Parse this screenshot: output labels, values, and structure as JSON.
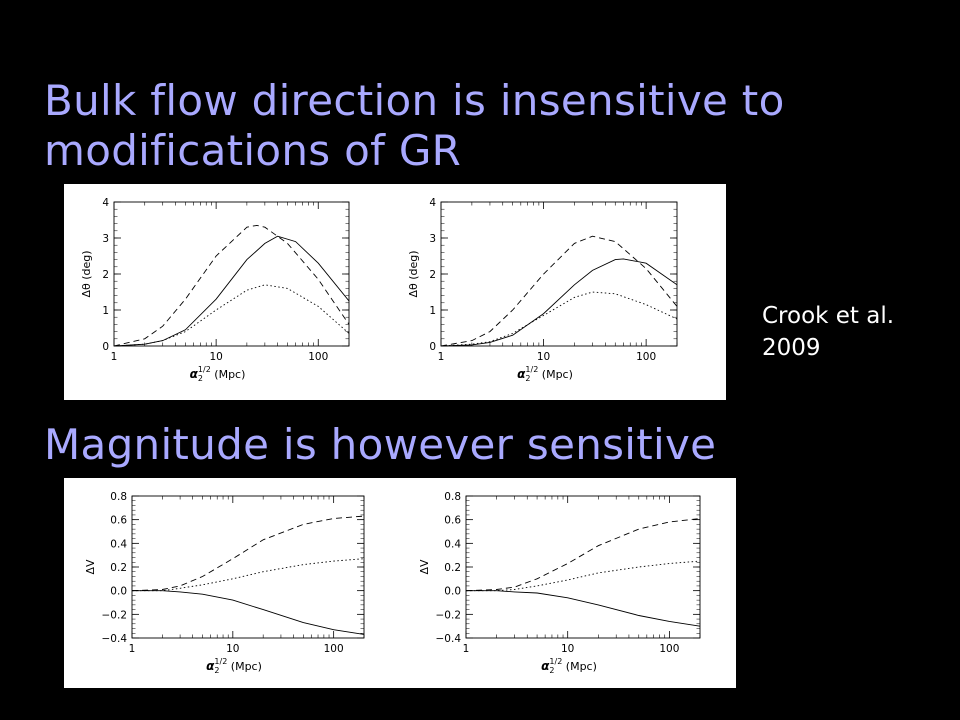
{
  "slide": {
    "title_top_line1": "Bulk flow direction is insensitive to",
    "title_top_line2": "modifications of GR",
    "title_bottom": "Magnitude is however sensitive",
    "citation_line1": "Crook et al.",
    "citation_line2": "2009",
    "title_color": "#a9a9ff",
    "background_color": "#000000"
  },
  "chart_data": [
    {
      "type": "line",
      "xscale": "log",
      "xlim": [
        1,
        200
      ],
      "ylim": [
        0,
        4
      ],
      "xticks": [
        1,
        10,
        100
      ],
      "yticks": [
        0,
        1,
        2,
        3,
        4
      ],
      "xtick_labels": [
        "1",
        "10",
        "100"
      ],
      "ytick_labels": [
        "0",
        "1",
        "2",
        "3",
        "4"
      ],
      "xlabel_main": "α",
      "xlabel_sup": "1/2",
      "xlabel_sub": "2",
      "xlabel_unit": "(Mpc)",
      "ylabel": "Δθ (deg)",
      "series": [
        {
          "style": "solid",
          "x": [
            1,
            2,
            3,
            5,
            10,
            20,
            30,
            40,
            60,
            100,
            200
          ],
          "y": [
            0.0,
            0.05,
            0.15,
            0.45,
            1.3,
            2.4,
            2.85,
            3.05,
            2.9,
            2.3,
            1.25
          ]
        },
        {
          "style": "dashed",
          "x": [
            1,
            2,
            3,
            5,
            10,
            20,
            25,
            30,
            50,
            100,
            200
          ],
          "y": [
            0.0,
            0.2,
            0.55,
            1.3,
            2.5,
            3.3,
            3.35,
            3.3,
            2.85,
            1.85,
            0.6
          ]
        },
        {
          "style": "dotted",
          "x": [
            1,
            2,
            3,
            5,
            10,
            20,
            30,
            50,
            100,
            200
          ],
          "y": [
            0.0,
            0.05,
            0.15,
            0.4,
            1.0,
            1.55,
            1.7,
            1.6,
            1.1,
            0.35
          ]
        }
      ]
    },
    {
      "type": "line",
      "xscale": "log",
      "xlim": [
        1,
        200
      ],
      "ylim": [
        0,
        4
      ],
      "xticks": [
        1,
        10,
        100
      ],
      "yticks": [
        0,
        1,
        2,
        3,
        4
      ],
      "xtick_labels": [
        "1",
        "10",
        "100"
      ],
      "ytick_labels": [
        "0",
        "1",
        "2",
        "3",
        "4"
      ],
      "xlabel_main": "α",
      "xlabel_sup": "1/2",
      "xlabel_sub": "2",
      "xlabel_unit": "(Mpc)",
      "ylabel": "Δθ (deg)",
      "series": [
        {
          "style": "solid",
          "x": [
            1,
            2,
            3,
            5,
            10,
            20,
            30,
            50,
            60,
            100,
            200
          ],
          "y": [
            0.0,
            0.03,
            0.1,
            0.3,
            0.9,
            1.7,
            2.1,
            2.4,
            2.42,
            2.3,
            1.7
          ]
        },
        {
          "style": "dashed",
          "x": [
            1,
            2,
            3,
            5,
            10,
            20,
            30,
            50,
            100,
            200
          ],
          "y": [
            0.0,
            0.15,
            0.4,
            1.0,
            2.0,
            2.85,
            3.05,
            2.9,
            2.15,
            1.1
          ]
        },
        {
          "style": "dotted",
          "x": [
            1,
            2,
            3,
            5,
            10,
            20,
            30,
            50,
            100,
            200
          ],
          "y": [
            0.0,
            0.05,
            0.12,
            0.35,
            0.85,
            1.35,
            1.5,
            1.45,
            1.15,
            0.75
          ]
        }
      ]
    },
    {
      "type": "line",
      "xscale": "log",
      "xlim": [
        1,
        200
      ],
      "ylim": [
        -0.4,
        0.8
      ],
      "xticks": [
        1,
        10,
        100
      ],
      "yticks": [
        -0.4,
        -0.2,
        0.0,
        0.2,
        0.4,
        0.6,
        0.8
      ],
      "xtick_labels": [
        "1",
        "10",
        "100"
      ],
      "ytick_labels": [
        "−0.4",
        "−0.2",
        "0.0",
        "0.2",
        "0.4",
        "0.6",
        "0.8"
      ],
      "xlabel_main": "α",
      "xlabel_sup": "1/2",
      "xlabel_sub": "2",
      "xlabel_unit": "(Mpc)",
      "ylabel": "ΔV",
      "series": [
        {
          "style": "solid",
          "x": [
            1,
            2,
            3,
            5,
            10,
            20,
            50,
            100,
            200
          ],
          "y": [
            0.0,
            0.0,
            -0.01,
            -0.03,
            -0.08,
            -0.16,
            -0.27,
            -0.33,
            -0.37
          ]
        },
        {
          "style": "dashed",
          "x": [
            1,
            2,
            3,
            5,
            10,
            20,
            50,
            100,
            200
          ],
          "y": [
            0.0,
            0.01,
            0.04,
            0.12,
            0.27,
            0.43,
            0.56,
            0.61,
            0.63
          ]
        },
        {
          "style": "dotted",
          "x": [
            1,
            2,
            3,
            5,
            10,
            20,
            50,
            100,
            200
          ],
          "y": [
            0.0,
            0.0,
            0.02,
            0.05,
            0.1,
            0.16,
            0.22,
            0.25,
            0.27
          ]
        }
      ]
    },
    {
      "type": "line",
      "xscale": "log",
      "xlim": [
        1,
        200
      ],
      "ylim": [
        -0.4,
        0.8
      ],
      "xticks": [
        1,
        10,
        100
      ],
      "yticks": [
        -0.4,
        -0.2,
        0.0,
        0.2,
        0.4,
        0.6,
        0.8
      ],
      "xtick_labels": [
        "1",
        "10",
        "100"
      ],
      "ytick_labels": [
        "−0.4",
        "−0.2",
        "0.0",
        "0.2",
        "0.4",
        "0.6",
        "0.8"
      ],
      "xlabel_main": "α",
      "xlabel_sup": "1/2",
      "xlabel_sub": "2",
      "xlabel_unit": "(Mpc)",
      "ylabel": "ΔV",
      "series": [
        {
          "style": "solid",
          "x": [
            1,
            2,
            3,
            5,
            10,
            20,
            50,
            100,
            200
          ],
          "y": [
            0.0,
            0.0,
            -0.01,
            -0.02,
            -0.06,
            -0.12,
            -0.21,
            -0.26,
            -0.3
          ]
        },
        {
          "style": "dashed",
          "x": [
            1,
            2,
            3,
            5,
            10,
            20,
            50,
            100,
            200
          ],
          "y": [
            0.0,
            0.01,
            0.03,
            0.1,
            0.23,
            0.38,
            0.52,
            0.58,
            0.61
          ]
        },
        {
          "style": "dotted",
          "x": [
            1,
            2,
            3,
            5,
            10,
            20,
            50,
            100,
            200
          ],
          "y": [
            0.0,
            0.0,
            0.01,
            0.04,
            0.09,
            0.15,
            0.2,
            0.23,
            0.25
          ]
        }
      ]
    }
  ]
}
